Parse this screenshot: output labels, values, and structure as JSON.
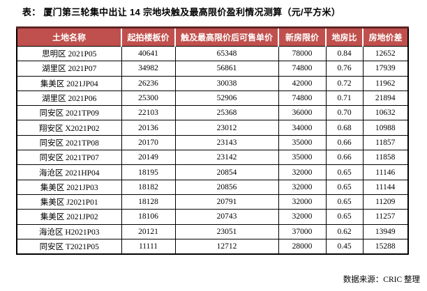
{
  "title": "表：  厦门第三轮集中出让 14 宗地块触及最高限价盈利情况测算（元/平方米）",
  "source_note": "数据来源：CRIC 整理",
  "colors": {
    "header_bg": "#c0504d",
    "header_text": "#ffffff",
    "table_top_accent_border": "#5e2423",
    "grid_border": "#000000",
    "page_bg": "#ffffff",
    "body_text": "#000000"
  },
  "chart_data": {
    "type": "table",
    "title": "厦门第三轮集中出让 14 宗地块触及最高限价盈利情况测算（元/平方米）",
    "columns": [
      "土地名称",
      "起拍楼板价",
      "触及最高限价后可售单价",
      "新房限价",
      "地房比",
      "房地价差"
    ],
    "rows": [
      [
        "思明区 2021P05",
        "40641",
        "65348",
        "78000",
        "0.84",
        "12652"
      ],
      [
        "湖里区 2021P07",
        "34982",
        "56861",
        "74800",
        "0.76",
        "17939"
      ],
      [
        "集美区 2021JP04",
        "26236",
        "30038",
        "42000",
        "0.72",
        "11962"
      ],
      [
        "湖里区 2021P06",
        "25300",
        "52906",
        "74800",
        "0.71",
        "21894"
      ],
      [
        "同安区 2021TP09",
        "22103",
        "25368",
        "36000",
        "0.70",
        "10632"
      ],
      [
        "翔安区 X2021P02",
        "20136",
        "23012",
        "34000",
        "0.68",
        "10988"
      ],
      [
        "同安区 2021TP08",
        "20170",
        "23143",
        "35000",
        "0.66",
        "11857"
      ],
      [
        "同安区 2021TP07",
        "20149",
        "23142",
        "35000",
        "0.66",
        "11858"
      ],
      [
        "海沧区 2021HP04",
        "18195",
        "20854",
        "32000",
        "0.65",
        "11146"
      ],
      [
        "集美区 2021JP03",
        "18182",
        "20856",
        "32000",
        "0.65",
        "11144"
      ],
      [
        "集美区 J2021P01",
        "18128",
        "20791",
        "32000",
        "0.65",
        "11209"
      ],
      [
        "集美区 2021JP02",
        "18106",
        "20743",
        "32000",
        "0.65",
        "11257"
      ],
      [
        "海沧区 H2021P03",
        "20121",
        "23051",
        "37000",
        "0.62",
        "13949"
      ],
      [
        "同安区 T2021P05",
        "11111",
        "12712",
        "28000",
        "0.45",
        "15288"
      ]
    ]
  },
  "table": {
    "headers": [
      "土地名称",
      "起拍楼板价",
      "触及最高限价后可售单价",
      "新房限价",
      "地房比",
      "房地价差"
    ]
  }
}
